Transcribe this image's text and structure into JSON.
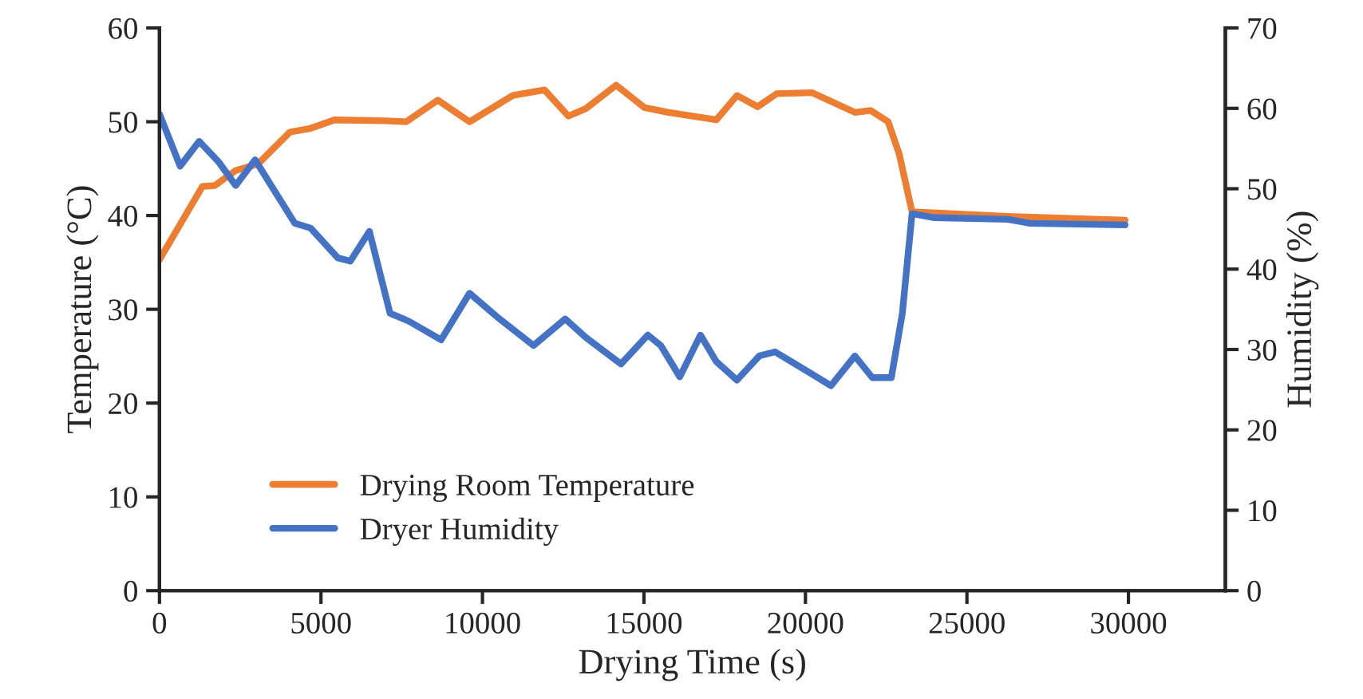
{
  "chart_data": {
    "type": "line",
    "xlabel": "Drying Time (s)",
    "ylabel": "Temperature (°C)",
    "y2label": "Humidity (%)",
    "xlim": [
      0,
      33000
    ],
    "xticks": [
      0,
      5000,
      10000,
      15000,
      20000,
      25000,
      30000
    ],
    "ylim": [
      0,
      60
    ],
    "yticks": [
      0,
      10,
      20,
      30,
      40,
      50,
      60
    ],
    "y2lim": [
      0,
      70
    ],
    "y2ticks": [
      0,
      10,
      20,
      30,
      40,
      50,
      60,
      70
    ],
    "grid": false,
    "legend": "bottom left",
    "marker": "none",
    "line_style": "solid",
    "series": [
      {
        "name": "Drying Room Temperature",
        "color": "#ed7d31",
        "x": [
          0,
          1330,
          1720,
          2360,
          3050,
          4040,
          4680,
          5420,
          7000,
          7640,
          8620,
          9600,
          10940,
          11920,
          12660,
          13200,
          14140,
          15020,
          15760,
          17240,
          17880,
          18520,
          19110,
          20200,
          21530,
          22020,
          22560,
          22900,
          23300,
          26260,
          29900
        ],
        "values": [
          35.3,
          43.1,
          43.2,
          44.8,
          45.5,
          48.9,
          49.3,
          50.2,
          50.1,
          50.0,
          52.3,
          50.0,
          52.8,
          53.4,
          50.6,
          51.4,
          53.9,
          51.5,
          51.0,
          50.2,
          52.8,
          51.6,
          53.0,
          53.1,
          51.0,
          51.2,
          50.0,
          46.6,
          40.4,
          39.9,
          39.5
        ]
      },
      {
        "name": "Dryer Humidity",
        "color": "#4472c4",
        "axis": "y2",
        "x": [
          0,
          640,
          1230,
          1820,
          2360,
          2960,
          4190,
          4680,
          5520,
          5910,
          6500,
          7140,
          7730,
          8720,
          9600,
          10440,
          11580,
          12560,
          13200,
          14290,
          15120,
          15520,
          16110,
          16750,
          17240,
          17880,
          18570,
          19060,
          19560,
          20790,
          21530,
          22070,
          22660,
          23000,
          23300,
          23990,
          26260,
          26950,
          29900
        ],
        "values": [
          59.3,
          52.8,
          55.9,
          53.4,
          50.4,
          53.6,
          45.7,
          45.1,
          41.4,
          41.0,
          44.7,
          34.5,
          33.5,
          31.2,
          37.0,
          34.1,
          30.5,
          33.8,
          31.5,
          28.2,
          31.8,
          30.5,
          26.6,
          31.8,
          28.5,
          26.2,
          29.2,
          29.7,
          28.5,
          25.5,
          29.2,
          26.5,
          26.5,
          34.5,
          46.9,
          46.4,
          46.2,
          45.7,
          45.5
        ]
      }
    ]
  }
}
